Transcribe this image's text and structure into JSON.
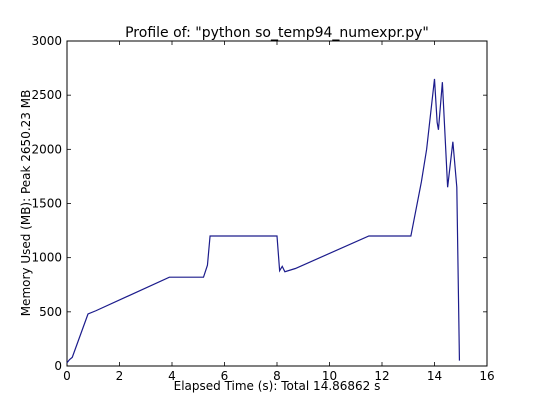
{
  "chart_data": {
    "type": "line",
    "title": "Profile of: \"python so_temp94_numexpr.py\"",
    "x_label": "Elapsed Time (s): Total 14.86862 s",
    "y_label": "Memory Used (MB): Peak 2650.23 MB",
    "x": [
      0,
      0.1,
      0.2,
      0.8,
      1.1,
      3.9,
      5.2,
      5.35,
      5.45,
      8.0,
      8.1,
      8.2,
      8.3,
      8.7,
      11.5,
      13.1,
      13.5,
      13.7,
      14.0,
      14.1,
      14.15,
      14.3,
      14.5,
      14.7,
      14.85,
      14.95
    ],
    "series": [
      {
        "name": "memory",
        "color": "#1c1c8c",
        "values": [
          30,
          60,
          80,
          480,
          510,
          820,
          820,
          930,
          1200,
          1200,
          880,
          920,
          870,
          900,
          1200,
          1200,
          1700,
          2000,
          2650,
          2250,
          2180,
          2620,
          1650,
          2070,
          1650,
          50
        ]
      }
    ],
    "xlim": [
      0,
      16
    ],
    "xticks": [
      0,
      2,
      4,
      6,
      8,
      10,
      12,
      14,
      16
    ],
    "ylim": [
      0,
      3000
    ],
    "yticks": [
      0,
      500,
      1000,
      1500,
      2000,
      2500,
      3000
    ]
  }
}
